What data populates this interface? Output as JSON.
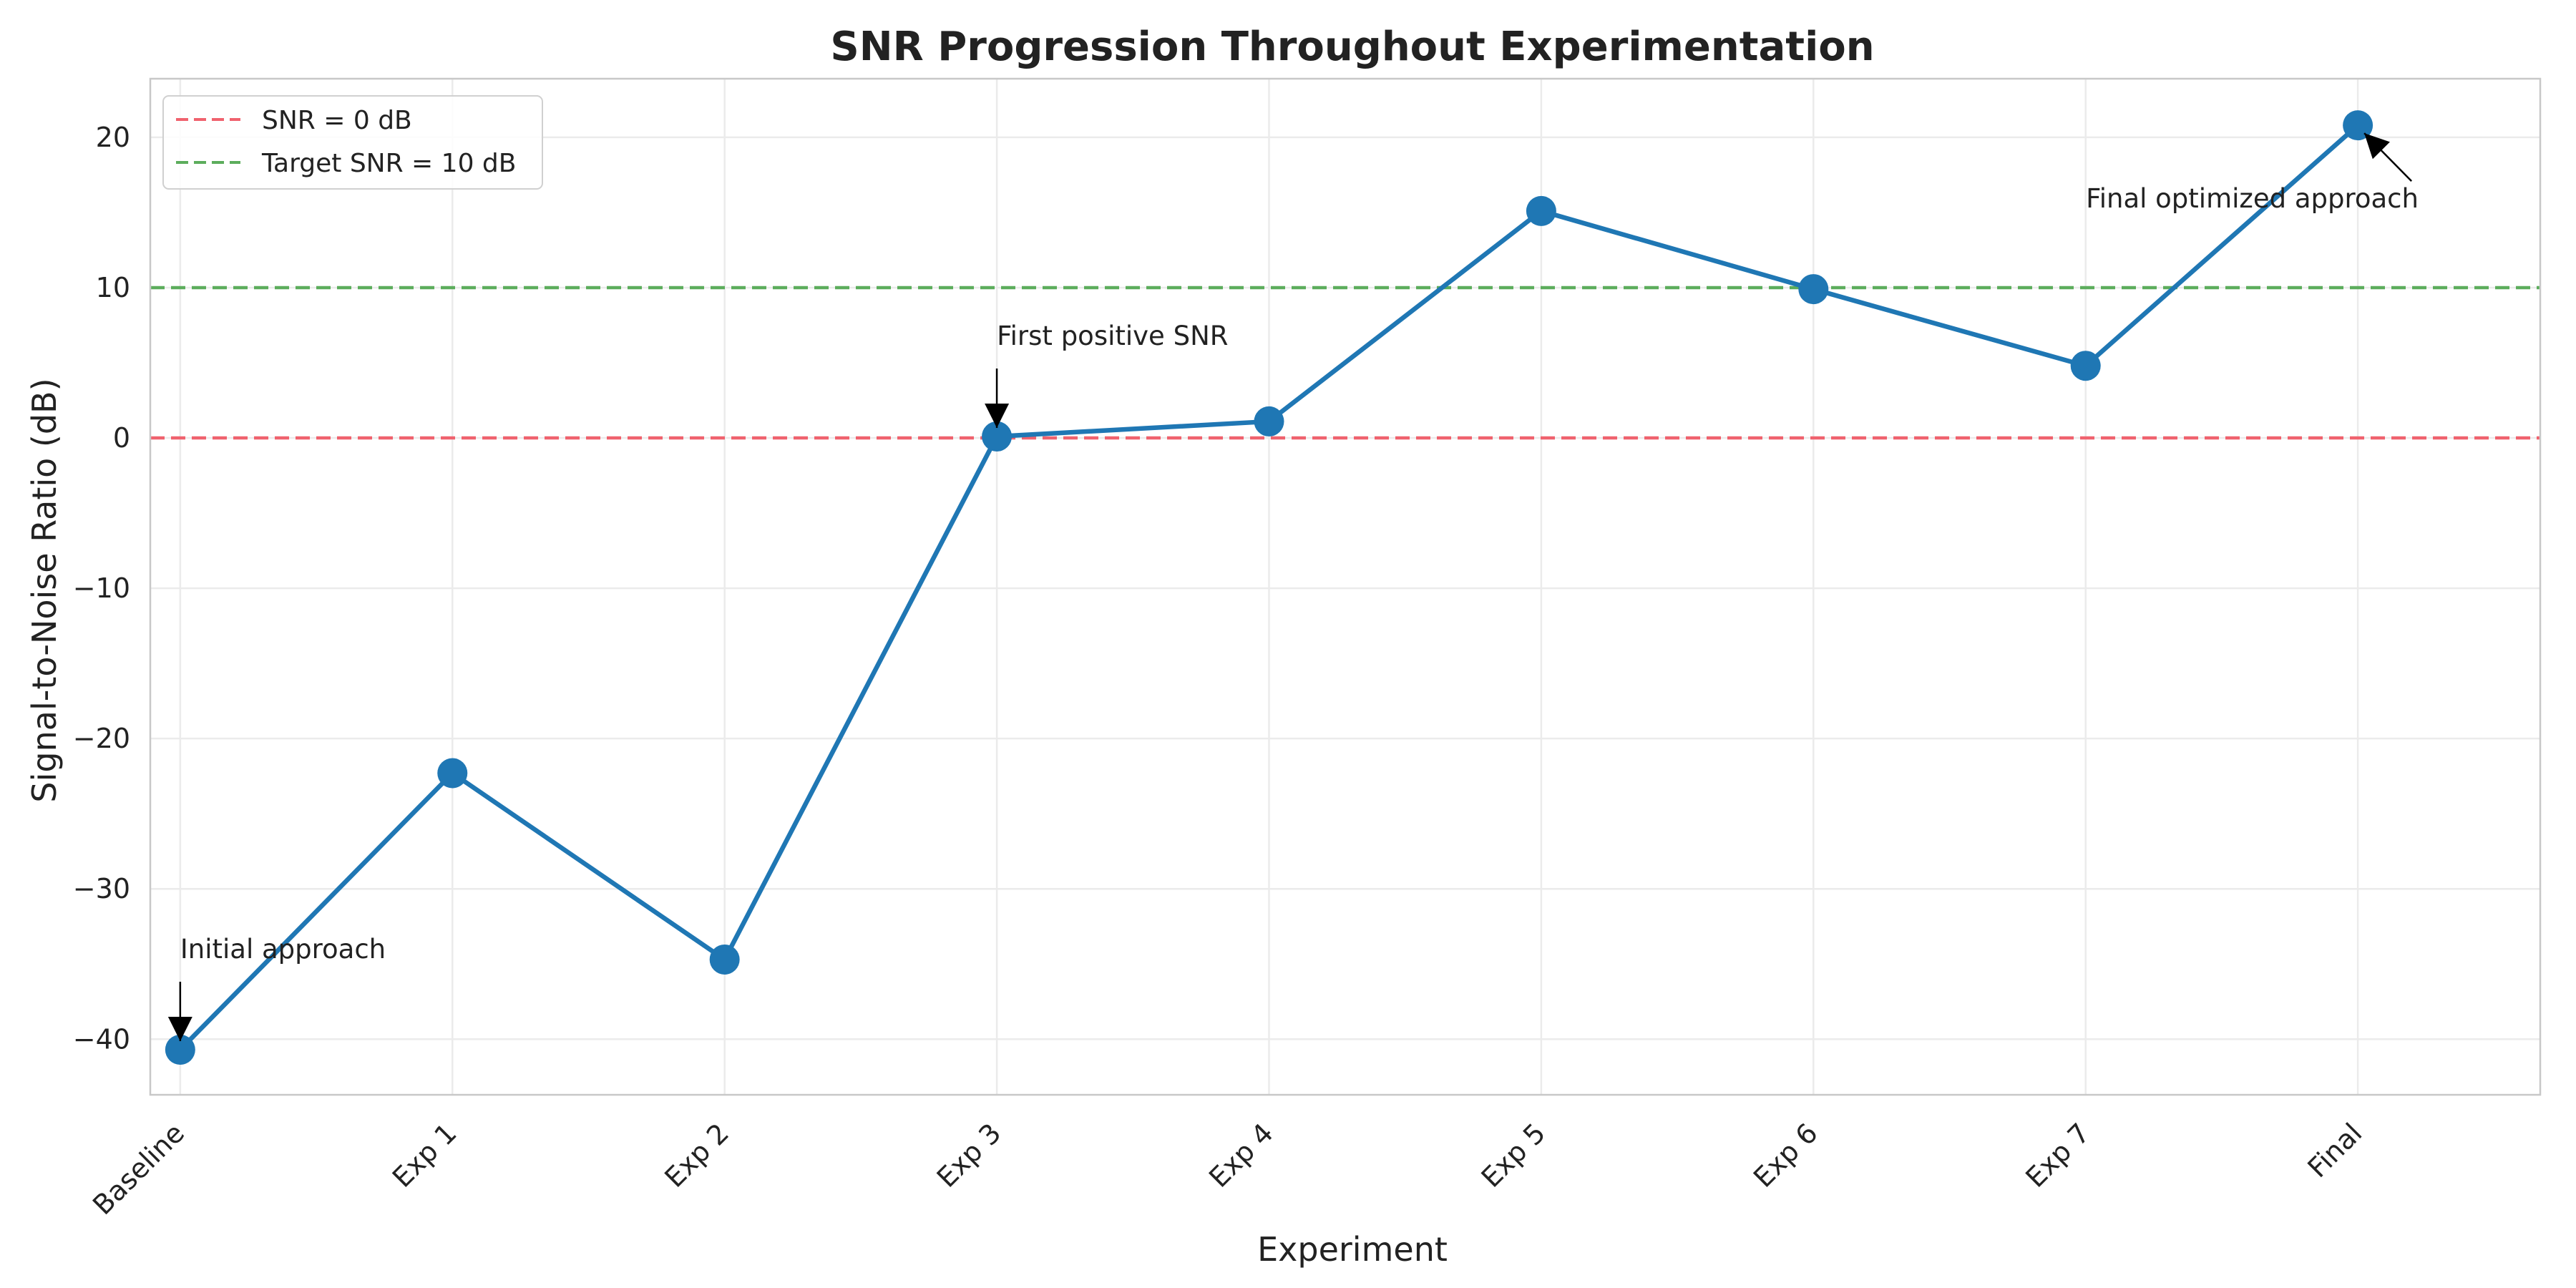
{
  "chart_data": {
    "type": "line",
    "title": "SNR Progression Throughout Experimentation",
    "xlabel": "Experiment",
    "ylabel": "Signal-to-Noise Ratio (dB)",
    "categories": [
      "Baseline",
      "Exp 1",
      "Exp 2",
      "Exp 3",
      "Exp 4",
      "Exp 5",
      "Exp 6",
      "Exp 7",
      "Final"
    ],
    "series": [
      {
        "values": [
          -40.7,
          -22.3,
          -34.7,
          0.1,
          1.1,
          15.1,
          9.9,
          4.8,
          20.8
        ],
        "color": "#1f77b4"
      }
    ],
    "ylim": [
      -43.7,
      23.9
    ],
    "yticks": [
      -40,
      -30,
      -20,
      -10,
      0,
      10,
      20
    ],
    "ytick_labels": [
      "−40",
      "−30",
      "−20",
      "−10",
      "0",
      "10",
      "20"
    ],
    "reference_lines": [
      {
        "y": 0,
        "label": "SNR = 0 dB",
        "color": "#f0626e",
        "style": "dashed"
      },
      {
        "y": 10,
        "label": "Target SNR = 10 dB",
        "color": "#5cad5c",
        "style": "dashed"
      }
    ],
    "annotations": [
      {
        "text": "Initial approach",
        "point_index": 0
      },
      {
        "text": "First positive SNR",
        "point_index": 3
      },
      {
        "text": "Final optimized approach",
        "point_index": 8
      }
    ],
    "grid": true,
    "legend_position": "top-left"
  }
}
